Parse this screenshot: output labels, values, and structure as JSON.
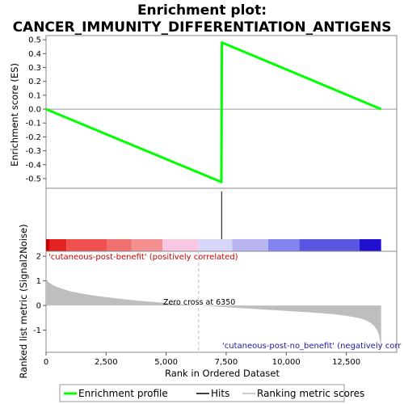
{
  "title_line1": "Enrichment plot:",
  "title_line2": "CANCER_IMMUNITY_DIFFERENTIATION_ANTIGENS",
  "colors": {
    "enrichment_line": "#00ff00",
    "hits": "#000000",
    "metric_fill": "#bebebe",
    "zero_cross_line": "#bebebe",
    "positive_label": "#cc0000",
    "negative_label": "#1a1aa6"
  },
  "chart_data": {
    "type": "line",
    "n_genes": 14000,
    "top_panel": {
      "ylabel": "Enrichment score (ES)",
      "ylim": [
        -0.57,
        0.53
      ],
      "yticks": [
        -0.5,
        -0.4,
        -0.3,
        -0.2,
        -0.1,
        0.0,
        0.1,
        0.2,
        0.3,
        0.4,
        0.5
      ],
      "ytick_labels": [
        "-0.5",
        "-0.4",
        "-0.3",
        "-0.2",
        "-0.1",
        "0.0",
        "0.1",
        "0.2",
        "0.3",
        "0.4",
        "0.5"
      ],
      "series": [
        {
          "name": "Enrichment profile",
          "x": [
            0,
            7300,
            7320,
            13950
          ],
          "y": [
            0.0,
            -0.525,
            0.48,
            0.0
          ]
        }
      ],
      "hits": [
        7310
      ]
    },
    "color_bar": {
      "segments": [
        {
          "start": 0,
          "end": 150,
          "color": "#c90000"
        },
        {
          "start": 150,
          "end": 850,
          "color": "#e42121"
        },
        {
          "start": 850,
          "end": 2550,
          "color": "#f05050"
        },
        {
          "start": 2550,
          "end": 3550,
          "color": "#f07070"
        },
        {
          "start": 3550,
          "end": 4850,
          "color": "#f49090"
        },
        {
          "start": 4850,
          "end": 6350,
          "color": "#f7c7e4"
        },
        {
          "start": 6350,
          "end": 7750,
          "color": "#d8d6f8"
        },
        {
          "start": 7750,
          "end": 9250,
          "color": "#b8b6f0"
        },
        {
          "start": 9250,
          "end": 10550,
          "color": "#8484ee"
        },
        {
          "start": 10550,
          "end": 13050,
          "color": "#5a56e2"
        },
        {
          "start": 13050,
          "end": 13950,
          "color": "#2210d0"
        }
      ]
    },
    "bottom_panel": {
      "ylabel": "Ranked list metric (Signal2Noise)",
      "xlabel": "Rank in Ordered Dataset",
      "ylim": [
        -1.9,
        2.2
      ],
      "yticks": [
        -1,
        0,
        1,
        2
      ],
      "ytick_labels": [
        "-1",
        "0",
        "1",
        "2"
      ],
      "xlim": [
        0,
        14600
      ],
      "xticks": [
        0,
        2500,
        5000,
        7500,
        10000,
        12500
      ],
      "xtick_labels": [
        "0",
        "2,500",
        "5,000",
        "7,500",
        "10,000",
        "12,500"
      ],
      "metric_curve": {
        "x": [
          0,
          100,
          300,
          600,
          1000,
          1500,
          2000,
          2500,
          3000,
          3500,
          4000,
          4500,
          5000,
          5500,
          6000,
          6350,
          7000,
          7500,
          8000,
          8500,
          9000,
          9500,
          10000,
          10500,
          11000,
          11500,
          12000,
          12500,
          12800,
          13100,
          13300,
          13500,
          13650,
          13750,
          13850,
          13900,
          13950
        ],
        "y": [
          1.1,
          0.95,
          0.82,
          0.7,
          0.58,
          0.48,
          0.4,
          0.34,
          0.28,
          0.23,
          0.18,
          0.14,
          0.1,
          0.06,
          0.03,
          0.0,
          -0.04,
          -0.07,
          -0.1,
          -0.13,
          -0.16,
          -0.19,
          -0.22,
          -0.25,
          -0.28,
          -0.32,
          -0.36,
          -0.42,
          -0.47,
          -0.53,
          -0.6,
          -0.7,
          -0.82,
          -0.95,
          -1.15,
          -1.4,
          -1.75
        ]
      },
      "zero_cross": 6350,
      "zero_cross_label": "Zero cross at 6350",
      "positive_label": "'cutaneous-post-benefit' (positively correlated)",
      "negative_label": "'cutaneous-post-no_benefit' (negatively corr"
    },
    "legend": {
      "placement": "bottom",
      "items": [
        {
          "label": "Enrichment profile",
          "kind": "line",
          "color": "#00ff00"
        },
        {
          "label": "Hits",
          "kind": "line",
          "color": "#000000"
        },
        {
          "label": "Ranking metric scores",
          "kind": "line",
          "color": "#bebebe"
        }
      ]
    }
  }
}
